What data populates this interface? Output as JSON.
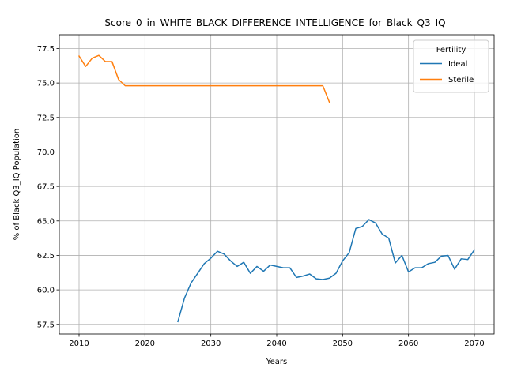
{
  "chart_data": {
    "type": "line",
    "title": "Score_0_in_WHITE_BLACK_DIFFERENCE_INTELLIGENCE_for_Black_Q3_IQ",
    "xlabel": "Years",
    "ylabel": "% of Black Q3_IQ Population",
    "xlim": [
      2007,
      2073
    ],
    "ylim": [
      56.8,
      78.5
    ],
    "xticks": [
      2010,
      2020,
      2030,
      2040,
      2050,
      2060,
      2070
    ],
    "xtick_labels": [
      "2010",
      "2020",
      "2030",
      "2040",
      "2050",
      "2060",
      "2070"
    ],
    "yticks": [
      57.5,
      60.0,
      62.5,
      65.0,
      67.5,
      70.0,
      72.5,
      75.0,
      77.5
    ],
    "ytick_labels": [
      "57.5",
      "60.0",
      "62.5",
      "65.0",
      "67.5",
      "70.0",
      "72.5",
      "75.0",
      "77.5"
    ],
    "grid": true,
    "legend": {
      "title": "Fertility",
      "placement": "top-right"
    },
    "series": [
      {
        "name": "Ideal",
        "color": "#1f77b4",
        "x": [
          2025,
          2026,
          2027,
          2028,
          2029,
          2030,
          2031,
          2032,
          2033,
          2034,
          2035,
          2036,
          2037,
          2038,
          2039,
          2040,
          2041,
          2042,
          2043,
          2044,
          2045,
          2046,
          2047,
          2048,
          2049,
          2050,
          2051,
          2052,
          2053,
          2054,
          2055,
          2056,
          2057,
          2058,
          2059,
          2060,
          2061,
          2062,
          2063,
          2064,
          2065,
          2066,
          2067,
          2068,
          2069,
          2070
        ],
        "y": [
          57.7,
          59.4,
          60.5,
          61.2,
          61.9,
          62.3,
          62.8,
          62.6,
          62.1,
          61.7,
          62.0,
          61.2,
          61.7,
          61.35,
          61.8,
          61.7,
          61.6,
          61.6,
          60.9,
          61.0,
          61.15,
          60.8,
          60.75,
          60.85,
          61.2,
          62.1,
          62.7,
          64.45,
          64.6,
          65.1,
          64.85,
          64.05,
          63.75,
          61.95,
          62.5,
          61.3,
          61.6,
          61.6,
          61.9,
          62.0,
          62.45,
          62.5,
          61.5,
          62.25,
          62.2,
          62.9
        ]
      },
      {
        "name": "Sterile",
        "color": "#ff7f0e",
        "x": [
          2010,
          2011,
          2012,
          2013,
          2014,
          2015,
          2016,
          2017,
          2018,
          2019,
          2020,
          2021,
          2022,
          2023,
          2024,
          2025,
          2026,
          2027,
          2028,
          2029,
          2030,
          2031,
          2032,
          2033,
          2034,
          2035,
          2036,
          2037,
          2038,
          2039,
          2040,
          2041,
          2042,
          2043,
          2044,
          2045,
          2046,
          2047,
          2048
        ],
        "y": [
          76.95,
          76.2,
          76.8,
          77.0,
          76.55,
          76.55,
          75.25,
          74.8,
          74.8,
          74.8,
          74.8,
          74.8,
          74.8,
          74.8,
          74.8,
          74.8,
          74.8,
          74.8,
          74.8,
          74.8,
          74.8,
          74.8,
          74.8,
          74.8,
          74.8,
          74.8,
          74.8,
          74.8,
          74.8,
          74.8,
          74.8,
          74.8,
          74.8,
          74.8,
          74.8,
          74.8,
          74.8,
          74.8,
          73.6
        ]
      }
    ]
  }
}
